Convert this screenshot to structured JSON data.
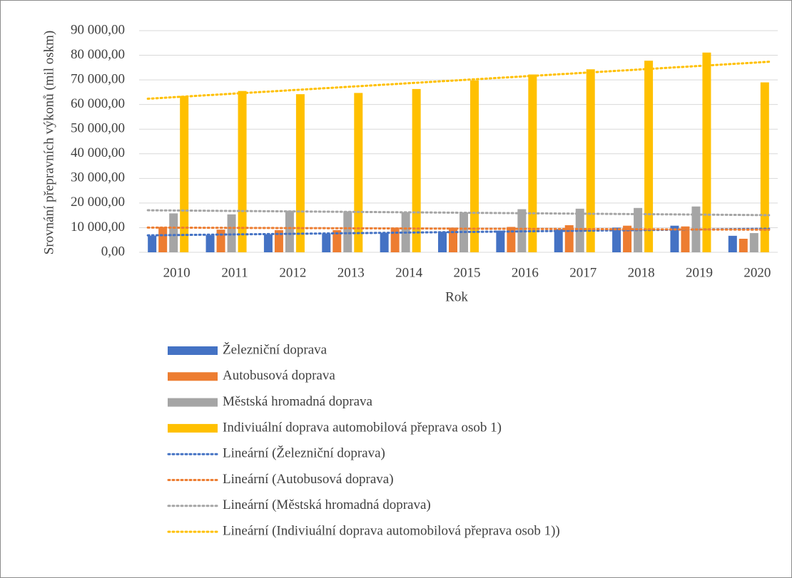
{
  "chart_data": {
    "type": "bar",
    "x_label": "Rok",
    "y_label": "Srovnání přepravních výkonů (mil oskm)",
    "categories": [
      "2010",
      "2011",
      "2012",
      "2013",
      "2014",
      "2015",
      "2016",
      "2017",
      "2018",
      "2019",
      "2020"
    ],
    "series": [
      {
        "name": "Železniční doprava",
        "color": "#4472c4",
        "values": [
          6700,
          7000,
          7300,
          7600,
          7900,
          8300,
          8800,
          9400,
          10000,
          10800,
          6700
        ]
      },
      {
        "name": "Autobusová doprava",
        "color": "#ed7d31",
        "values": [
          10300,
          9200,
          9000,
          9000,
          10000,
          10000,
          10300,
          11000,
          10800,
          10500,
          5500
        ]
      },
      {
        "name": "Městská hromadná doprava",
        "color": "#a5a5a5",
        "values": [
          15800,
          15400,
          16900,
          16600,
          16300,
          16200,
          17500,
          17700,
          18000,
          18600,
          7800
        ]
      },
      {
        "name": "Indiviuální doprava automobilová přeprava osob 1)",
        "color": "#ffc000",
        "values": [
          63500,
          65500,
          64200,
          64700,
          66300,
          69800,
          72200,
          74300,
          77800,
          81100,
          69000
        ]
      }
    ],
    "trendlines": [
      {
        "name": "Lineární (Železniční doprava)"
      },
      {
        "name": "Lineární (Autobusová doprava)"
      },
      {
        "name": "Lineární (Městská hromadná doprava)"
      },
      {
        "name": "Lineární (Indiviuální doprava automobilová přeprava osob 1))"
      }
    ],
    "ylim": [
      0,
      90000
    ],
    "yticks": [
      {
        "value": 0,
        "label": "0,00"
      },
      {
        "value": 10000,
        "label": "10 000,00"
      },
      {
        "value": 20000,
        "label": "20 000,00"
      },
      {
        "value": 30000,
        "label": "30 000,00"
      },
      {
        "value": 40000,
        "label": "40 000,00"
      },
      {
        "value": 50000,
        "label": "50 000,00"
      },
      {
        "value": 60000,
        "label": "60 000,00"
      },
      {
        "value": 70000,
        "label": "70 000,00"
      },
      {
        "value": 80000,
        "label": "80 000,00"
      },
      {
        "value": 90000,
        "label": "90 000,00"
      }
    ],
    "grid": true
  }
}
